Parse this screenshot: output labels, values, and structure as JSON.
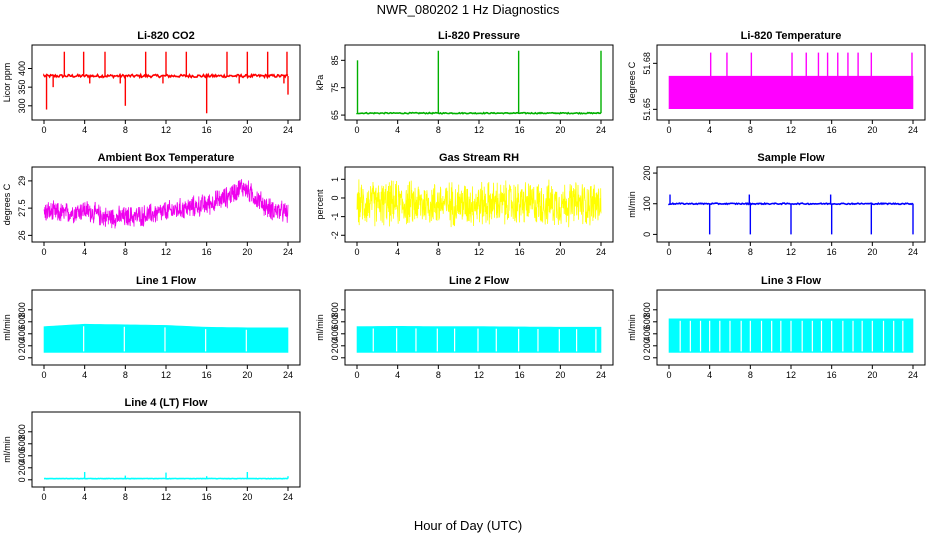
{
  "title": "NWR_080202  1 Hz Diagnostics",
  "xlabel": "Hour of Day (UTC)",
  "chart_data": [
    {
      "type": "line",
      "title": "Li-820 CO2",
      "ylabel": "Licor ppm",
      "color": "#ff0000",
      "xlim": [
        0,
        24
      ],
      "ylim": [
        270,
        455
      ],
      "xticks": [
        0,
        4,
        8,
        12,
        16,
        20,
        24
      ],
      "yticks": [
        300,
        350,
        400
      ],
      "baseline": 380,
      "noise": 4,
      "spikes": [
        [
          0.25,
          290
        ],
        [
          0.9,
          350
        ],
        [
          2.0,
          445
        ],
        [
          3.9,
          445
        ],
        [
          4.5,
          360
        ],
        [
          6.0,
          445
        ],
        [
          7.5,
          360
        ],
        [
          8.0,
          300
        ],
        [
          10.0,
          445
        ],
        [
          11.7,
          360
        ],
        [
          12.0,
          445
        ],
        [
          14.0,
          445
        ],
        [
          16.0,
          280
        ],
        [
          18.0,
          445
        ],
        [
          19.2,
          360
        ],
        [
          20.0,
          445
        ],
        [
          22.0,
          445
        ],
        [
          23.6,
          360
        ],
        [
          23.9,
          445
        ],
        [
          24.0,
          330
        ]
      ]
    },
    {
      "type": "line",
      "title": "Li-820 Pressure",
      "ylabel": "kPa",
      "color": "#00b000",
      "xlim": [
        0,
        24
      ],
      "ylim": [
        64.3,
        89.5
      ],
      "xticks": [
        0,
        4,
        8,
        12,
        16,
        20,
        24
      ],
      "yticks": [
        65,
        75,
        85
      ],
      "baseline": 65.7,
      "noise": 0.2,
      "spikes": [
        [
          0.05,
          85
        ],
        [
          8.0,
          88.5
        ],
        [
          15.9,
          88.5
        ],
        [
          24.0,
          88.5
        ]
      ]
    },
    {
      "type": "band",
      "title": "Li-820 Temperature",
      "ylabel": "degrees C",
      "color": "#ff00ff",
      "xlim": [
        0,
        24
      ],
      "ylim": [
        51.645,
        51.69
      ],
      "xticks": [
        0,
        4,
        8,
        12,
        16,
        20,
        24
      ],
      "yticks": [
        51.65,
        51.68
      ],
      "band": [
        51.6504,
        51.6716
      ],
      "spikes": [
        [
          4.1,
          51.687
        ],
        [
          5.7,
          51.687
        ],
        [
          8.1,
          51.687
        ],
        [
          12.1,
          51.687
        ],
        [
          13.5,
          51.687
        ],
        [
          14.7,
          51.687
        ],
        [
          15.6,
          51.687
        ],
        [
          16.6,
          51.687
        ],
        [
          17.6,
          51.687
        ],
        [
          18.6,
          51.687
        ],
        [
          19.9,
          51.687
        ],
        [
          23.9,
          51.687
        ]
      ]
    },
    {
      "type": "noise",
      "title": "Ambient Box Temperature",
      "ylabel": "degrees C",
      "color": "#ee00ee",
      "xlim": [
        0,
        24
      ],
      "ylim": [
        25.8,
        29.6
      ],
      "xticks": [
        0,
        4,
        8,
        12,
        16,
        20,
        24
      ],
      "yticks": [
        26.0,
        27.5,
        29.0
      ],
      "profile": [
        [
          0,
          27.3
        ],
        [
          2,
          27.2
        ],
        [
          4,
          27.4
        ],
        [
          6,
          27.0
        ],
        [
          8,
          27.0
        ],
        [
          10,
          27.1
        ],
        [
          12,
          27.3
        ],
        [
          14,
          27.5
        ],
        [
          16,
          27.7
        ],
        [
          18,
          28.1
        ],
        [
          19.5,
          28.7
        ],
        [
          21,
          28.0
        ],
        [
          22,
          27.5
        ],
        [
          24,
          27.2
        ]
      ],
      "amplitude": 0.7
    },
    {
      "type": "noise",
      "title": "Gas Stream RH",
      "ylabel": "percent",
      "color": "#ffff00",
      "xlim": [
        0,
        24
      ],
      "ylim": [
        -2.2,
        1.5
      ],
      "xticks": [
        0,
        4,
        8,
        12,
        16,
        20,
        24
      ],
      "yticks": [
        -2,
        -1,
        0,
        1
      ],
      "profile": [
        [
          0,
          -0.3
        ],
        [
          24,
          -0.3
        ]
      ],
      "amplitude": 1.4
    },
    {
      "type": "line",
      "title": "Sample Flow",
      "ylabel": "ml/min",
      "color": "#0000ff",
      "xlim": [
        0,
        24
      ],
      "ylim": [
        -15,
        210
      ],
      "xticks": [
        0,
        4,
        8,
        12,
        16,
        20,
        24
      ],
      "yticks": [
        0,
        100,
        200
      ],
      "baseline": 100,
      "noise": 2,
      "spikes": [
        [
          0.1,
          130
        ],
        [
          4.0,
          0
        ],
        [
          7.9,
          130
        ],
        [
          8.0,
          0
        ],
        [
          12.0,
          0
        ],
        [
          15.9,
          130
        ],
        [
          16.0,
          0
        ],
        [
          19.9,
          0
        ],
        [
          24.0,
          0
        ]
      ]
    },
    {
      "type": "band",
      "title": "Line 1 Flow",
      "ylabel": "ml/min",
      "color": "#00ffff",
      "xlim": [
        0,
        24
      ],
      "ylim": [
        -70,
        1080
      ],
      "xticks": [
        0,
        4,
        8,
        12,
        16,
        20,
        24
      ],
      "yticks": [
        0,
        200,
        400,
        600,
        800
      ],
      "band": [
        90,
        520
      ],
      "gaps": [
        3.9,
        7.9,
        11.9,
        15.9,
        19.9
      ],
      "tops": [
        [
          0,
          520
        ],
        [
          4,
          560
        ],
        [
          8,
          550
        ],
        [
          12,
          540
        ],
        [
          16,
          510
        ],
        [
          20,
          500
        ],
        [
          24,
          500
        ]
      ]
    },
    {
      "type": "band",
      "title": "Line 2 Flow",
      "ylabel": "ml/min",
      "color": "#00ffff",
      "xlim": [
        0,
        24
      ],
      "ylim": [
        -70,
        1080
      ],
      "xticks": [
        0,
        4,
        8,
        12,
        16,
        20,
        24
      ],
      "yticks": [
        0,
        200,
        400,
        600,
        800
      ],
      "band": [
        90,
        520
      ],
      "gaps": [
        1.6,
        3.9,
        5.8,
        7.9,
        9.6,
        11.9,
        13.7,
        15.9,
        17.8,
        19.9,
        21.6,
        23.5
      ],
      "tops": [
        [
          0,
          520
        ],
        [
          4,
          525
        ],
        [
          8,
          520
        ],
        [
          12,
          520
        ],
        [
          16,
          515
        ],
        [
          20,
          510
        ],
        [
          24,
          510
        ]
      ]
    },
    {
      "type": "band",
      "title": "Line 3 Flow",
      "ylabel": "ml/min",
      "color": "#00ffff",
      "xlim": [
        0,
        24
      ],
      "ylim": [
        -70,
        1080
      ],
      "xticks": [
        0,
        4,
        8,
        12,
        16,
        20,
        24
      ],
      "yticks": [
        0,
        200,
        400,
        600,
        800
      ],
      "band": [
        90,
        650
      ],
      "gaps": [
        1.1,
        2.1,
        3.1,
        4.0,
        5.0,
        6.0,
        7.1,
        8.0,
        9.1,
        10.1,
        11.0,
        12.0,
        13.1,
        14.1,
        15.0,
        16.0,
        17.1,
        18.1,
        19.0,
        20.0,
        21.1,
        22.1,
        23.0
      ],
      "tops": [
        [
          0,
          650
        ],
        [
          24,
          650
        ]
      ]
    },
    {
      "type": "line",
      "title": "Line 4 (LT) Flow",
      "ylabel": "ml/min",
      "color": "#00ffff",
      "xlim": [
        0,
        24
      ],
      "ylim": [
        -70,
        1080
      ],
      "xticks": [
        0,
        4,
        8,
        12,
        16,
        20,
        24
      ],
      "yticks": [
        0,
        200,
        400,
        600,
        800
      ],
      "baseline": 20,
      "noise": 3,
      "spikes": [
        [
          4.0,
          130
        ],
        [
          8.0,
          70
        ],
        [
          12.0,
          120
        ],
        [
          16.0,
          60
        ],
        [
          20.0,
          130
        ],
        [
          24.0,
          60
        ]
      ]
    }
  ]
}
